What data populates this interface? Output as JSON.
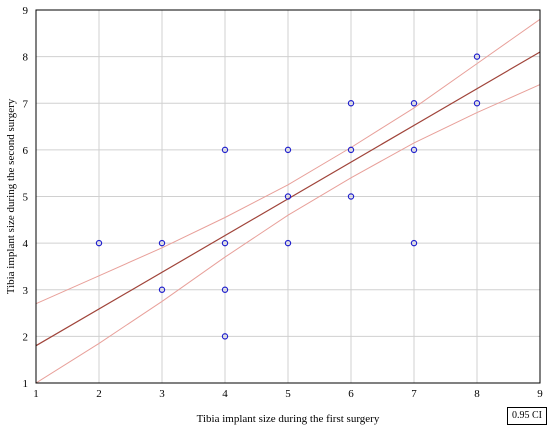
{
  "chart_data": {
    "type": "scatter",
    "xlabel": "Tibia implant size during the first surgery",
    "ylabel": "Tibia implant size during the second surgery",
    "xlim": [
      1,
      9
    ],
    "ylim": [
      1,
      9
    ],
    "xticks": [
      1,
      2,
      3,
      4,
      5,
      6,
      7,
      8,
      9
    ],
    "yticks": [
      1,
      2,
      3,
      4,
      5,
      6,
      7,
      8,
      9
    ],
    "grid": true,
    "points": [
      [
        2,
        4
      ],
      [
        3,
        4
      ],
      [
        3,
        3
      ],
      [
        4,
        6
      ],
      [
        4,
        4
      ],
      [
        4,
        3
      ],
      [
        4,
        2
      ],
      [
        5,
        6
      ],
      [
        5,
        5
      ],
      [
        5,
        4
      ],
      [
        6,
        7
      ],
      [
        6,
        6
      ],
      [
        6,
        5
      ],
      [
        7,
        7
      ],
      [
        7,
        6
      ],
      [
        7,
        4
      ],
      [
        8,
        8
      ],
      [
        8,
        7
      ]
    ],
    "regression": {
      "x": [
        1,
        9
      ],
      "y": [
        1.8,
        8.1
      ]
    },
    "ci_upper": {
      "x": [
        1,
        2,
        3,
        4,
        5,
        6,
        7,
        8,
        9
      ],
      "y": [
        2.7,
        3.3,
        3.9,
        4.55,
        5.25,
        6.05,
        6.9,
        7.85,
        8.8
      ]
    },
    "ci_lower": {
      "x": [
        1,
        2,
        3,
        4,
        5,
        6,
        7,
        8,
        9
      ],
      "y": [
        1.0,
        1.85,
        2.75,
        3.7,
        4.6,
        5.4,
        6.15,
        6.8,
        7.4
      ]
    },
    "ci_label": "0.95 CI",
    "colors": {
      "points": "#2222cc",
      "regression": "#a0443a",
      "ci": "#e8a09a",
      "grid": "#d0d0d0"
    }
  }
}
